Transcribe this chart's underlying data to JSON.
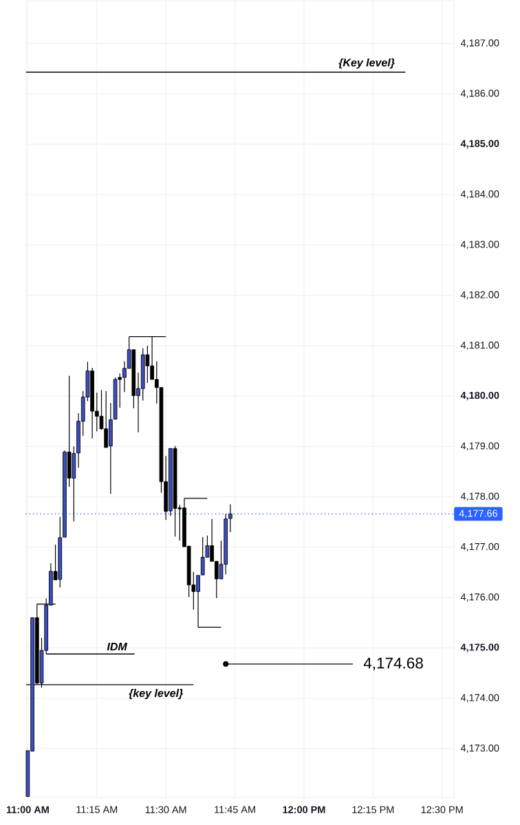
{
  "chart_data": {
    "type": "candlestick",
    "x": [
      11.0,
      11.0167,
      11.0333,
      11.05,
      11.0667,
      11.0833,
      11.1,
      11.1167,
      11.1333,
      11.15,
      11.1667,
      11.1833,
      11.2,
      11.2167,
      11.2333,
      11.25,
      11.2667,
      11.2833,
      11.3,
      11.3167,
      11.3333,
      11.35,
      11.3667,
      11.3833,
      11.4,
      11.4167,
      11.4333,
      11.45,
      11.4667,
      11.4833,
      11.5,
      11.5167,
      11.5333,
      11.55,
      11.5667,
      11.5833,
      11.6,
      11.6167,
      11.6333,
      11.65,
      11.6667,
      11.6833,
      11.7,
      11.7167,
      11.7333
    ],
    "ohlc": [
      [
        4172.05,
        4172.96,
        4172.05,
        4172.96
      ],
      [
        4172.95,
        4175.6,
        4172.95,
        4175.6
      ],
      [
        4175.6,
        4175.87,
        4174.28,
        4174.3
      ],
      [
        4174.3,
        4175.2,
        4174.21,
        4174.95
      ],
      [
        4174.95,
        4175.98,
        4174.88,
        4175.85
      ],
      [
        4175.85,
        4176.68,
        4175.85,
        4176.52
      ],
      [
        4176.52,
        4177.05,
        4176.35,
        4176.35
      ],
      [
        4176.36,
        4177.6,
        4176.2,
        4177.19
      ],
      [
        4177.2,
        4178.92,
        4177.2,
        4178.89
      ],
      [
        4178.89,
        4180.4,
        4178.2,
        4178.37
      ],
      [
        4178.37,
        4179.0,
        4177.51,
        4178.86
      ],
      [
        4178.87,
        4179.66,
        4178.58,
        4179.5
      ],
      [
        4179.5,
        4180.1,
        4179.21,
        4179.98
      ],
      [
        4179.98,
        4180.68,
        4179.9,
        4180.5
      ],
      [
        4180.5,
        4180.56,
        4179.16,
        4179.7
      ],
      [
        4179.7,
        4180.07,
        4179.3,
        4179.6
      ],
      [
        4179.6,
        4180.12,
        4179.33,
        4179.35
      ],
      [
        4179.35,
        4180.1,
        4178.98,
        4178.98
      ],
      [
        4179.01,
        4179.86,
        4178.06,
        4179.53
      ],
      [
        4179.54,
        4180.37,
        4179.54,
        4180.33
      ],
      [
        4180.37,
        4180.45,
        4179.77,
        4180.33
      ],
      [
        4180.37,
        4180.69,
        4180.08,
        4180.55
      ],
      [
        4180.55,
        4181.18,
        4180.55,
        4180.92
      ],
      [
        4180.92,
        4180.92,
        4179.76,
        4180.01
      ],
      [
        4180.01,
        4180.47,
        4179.28,
        4180.15
      ],
      [
        4180.15,
        4180.95,
        4179.91,
        4180.82
      ],
      [
        4180.82,
        4181.0,
        4180.26,
        4180.6
      ],
      [
        4180.6,
        4181.18,
        4180.33,
        4180.33
      ],
      [
        4180.33,
        4180.69,
        4179.85,
        4180.17
      ],
      [
        4180.17,
        4180.17,
        4178.08,
        4178.3
      ],
      [
        4178.3,
        4178.81,
        4177.54,
        4177.71
      ],
      [
        4177.72,
        4178.96,
        4177.62,
        4178.96
      ],
      [
        4178.96,
        4179.01,
        4177.21,
        4177.77
      ],
      [
        4177.78,
        4177.84,
        4177.13,
        4177.76
      ],
      [
        4177.78,
        4177.97,
        4177.01,
        4177.01
      ],
      [
        4177.02,
        4177.02,
        4176.01,
        4176.25
      ],
      [
        4176.25,
        4176.51,
        4175.76,
        4176.12
      ],
      [
        4176.12,
        4176.44,
        4175.41,
        4176.44
      ],
      [
        4176.45,
        4177.2,
        4176.45,
        4176.8
      ],
      [
        4176.8,
        4177.23,
        4176.8,
        4177.03
      ],
      [
        4177.03,
        4177.56,
        4176.72,
        4176.72
      ],
      [
        4176.72,
        4176.72,
        4175.99,
        4176.37
      ],
      [
        4176.37,
        4177.13,
        4176.37,
        4176.66
      ],
      [
        4176.66,
        4177.66,
        4176.46,
        4177.56
      ],
      [
        4177.57,
        4177.85,
        4177.3,
        4177.66
      ]
    ],
    "colors": [
      "#3c4fc4",
      "#3c4fc4",
      "#000000",
      "#3c4fc4",
      "#3c4fc4",
      "#3c4fc4",
      "#000000",
      "#3c4fc4",
      "#3c4fc4",
      "#000000",
      "#3c4fc4",
      "#3c4fc4",
      "#3c4fc4",
      "#3c4fc4",
      "#000000",
      "#000000",
      "#000000",
      "#000000",
      "#3c4fc4",
      "#3c4fc4",
      "#000000",
      "#3c4fc4",
      "#3c4fc4",
      "#000000",
      "#3c4fc4",
      "#3c4fc4",
      "#000000",
      "#000000",
      "#000000",
      "#000000",
      "#000000",
      "#3c4fc4",
      "#000000",
      "#000000",
      "#000000",
      "#000000",
      "#000000",
      "#3c4fc4",
      "#3c4fc4",
      "#3c4fc4",
      "#000000",
      "#000000",
      "#3c4fc4",
      "#3c4fc4",
      "#3c4fc4"
    ],
    "series": [
      {
        "type": "line",
        "x": [
          10.994,
          12.367
        ],
        "values": [
          4186.43,
          4186.43
        ],
        "color": "#000000"
      },
      {
        "type": "line",
        "x": [
          11.0333,
          11.1
        ],
        "values": [
          4175.87,
          4175.87
        ],
        "color": "#000000"
      },
      {
        "type": "line",
        "x": [
          11.0667,
          11.3867
        ],
        "values": [
          4174.88,
          4174.88
        ],
        "color": "#000000"
      },
      {
        "type": "line",
        "x": [
          10.994,
          11.6
        ],
        "values": [
          4174.27,
          4174.27
        ],
        "color": "#000000"
      },
      {
        "type": "line",
        "x": [
          11.3667,
          11.5
        ],
        "values": [
          4181.18,
          4181.18
        ],
        "color": "#000000"
      },
      {
        "type": "line",
        "x": [
          11.5667,
          11.65
        ],
        "values": [
          4177.97,
          4177.97
        ],
        "color": "#000000"
      },
      {
        "type": "line",
        "x": [
          11.6167,
          11.7
        ],
        "values": [
          4175.41,
          4175.41
        ],
        "color": "#000000"
      },
      {
        "type": "line",
        "x": [
          11.7167,
          12.177
        ],
        "values": [
          4174.68,
          4174.68
        ],
        "color": "#000000"
      },
      {
        "type": "scatter",
        "x": [
          11.7167
        ],
        "values": [
          4174.68
        ],
        "color": "#000000",
        "marker": "circle"
      }
    ],
    "ref_lines": [
      {
        "axis": "y",
        "value": 4177.66,
        "label": "4,177.66",
        "color": "#2962ff",
        "line_style": "dotted"
      }
    ],
    "annotations": [
      {
        "text": "{Key level}",
        "x": 12.227,
        "y": 4186.43
      },
      {
        "text": "IDM",
        "x": 11.323,
        "y": 4174.88
      },
      {
        "text": "{key level}",
        "x": 11.464,
        "y": 4174.27
      },
      {
        "text": "4,174.68",
        "x": 12.177,
        "y": 4174.68
      }
    ],
    "xlim": [
      10.994,
      12.543
    ],
    "xticks": [
      {
        "value": 11,
        "label": "11:00 AM"
      },
      {
        "value": 11.25,
        "label": "11:15 AM"
      },
      {
        "value": 11.5,
        "label": "11:30 AM"
      },
      {
        "value": 11.75,
        "label": "11:45 AM"
      },
      {
        "value": 12,
        "label": "12:00 PM"
      },
      {
        "value": 12.25,
        "label": "12:15 PM"
      },
      {
        "value": 12.5,
        "label": "12:30 PM"
      }
    ],
    "ylim": [
      4172.03,
      4187.85
    ],
    "yticks": [
      {
        "value": 4173,
        "label": "4,173.00"
      },
      {
        "value": 4174,
        "label": "4,174.00"
      },
      {
        "value": 4175,
        "label": "4,175.00"
      },
      {
        "value": 4176,
        "label": "4,176.00"
      },
      {
        "value": 4177,
        "label": "4,177.00"
      },
      {
        "value": 4178,
        "label": "4,178.00"
      },
      {
        "value": 4179,
        "label": "4,179.00"
      },
      {
        "value": 4180,
        "label": "4,180.00"
      },
      {
        "value": 4181,
        "label": "4,181.00"
      },
      {
        "value": 4182,
        "label": "4,182.00"
      },
      {
        "value": 4183,
        "label": "4,183.00"
      },
      {
        "value": 4184,
        "label": "4,184.00"
      },
      {
        "value": 4185,
        "label": "4,185.00"
      },
      {
        "value": 4186,
        "label": "4,186.00"
      },
      {
        "value": 4187,
        "label": "4,187.00"
      }
    ],
    "grid": true
  }
}
